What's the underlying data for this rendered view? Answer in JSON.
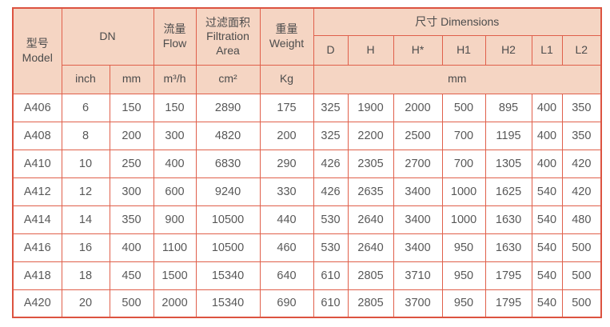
{
  "table": {
    "header": {
      "model": {
        "zh": "型号",
        "en": "Model"
      },
      "dn": "DN",
      "flow": {
        "zh": "流量",
        "en": "Flow"
      },
      "filtration": {
        "zh": "过滤面积",
        "en": "Filtration Area"
      },
      "weight": {
        "zh": "重量",
        "en": "Weight"
      },
      "dimensions": {
        "zh": "尺寸",
        "en": "Dimensions"
      },
      "dim_cols": [
        "D",
        "H",
        "H*",
        "H1",
        "H2",
        "L1",
        "L2"
      ],
      "units": {
        "inch": "inch",
        "dn_mm": "mm",
        "flow": "m³/h",
        "area": "cm²",
        "weight": "Kg",
        "dims": "mm"
      }
    },
    "rows": [
      {
        "model": "A406",
        "values": [
          "6",
          "150",
          "150",
          "2890",
          "175",
          "325",
          "1900",
          "2000",
          "500",
          "895",
          "400",
          "350"
        ]
      },
      {
        "model": "A408",
        "values": [
          "8",
          "200",
          "300",
          "4820",
          "200",
          "325",
          "2200",
          "2500",
          "700",
          "1195",
          "400",
          "350"
        ]
      },
      {
        "model": "A410",
        "values": [
          "10",
          "250",
          "400",
          "6830",
          "290",
          "426",
          "2305",
          "2700",
          "700",
          "1305",
          "400",
          "420"
        ]
      },
      {
        "model": "A412",
        "values": [
          "12",
          "300",
          "600",
          "9240",
          "330",
          "426",
          "2635",
          "3400",
          "1000",
          "1625",
          "540",
          "420"
        ]
      },
      {
        "model": "A414",
        "values": [
          "14",
          "350",
          "900",
          "10500",
          "440",
          "530",
          "2640",
          "3400",
          "1000",
          "1630",
          "540",
          "480"
        ]
      },
      {
        "model": "A416",
        "values": [
          "16",
          "400",
          "1100",
          "10500",
          "460",
          "530",
          "2640",
          "3400",
          "950",
          "1630",
          "540",
          "500"
        ]
      },
      {
        "model": "A418",
        "values": [
          "18",
          "450",
          "1500",
          "15340",
          "640",
          "610",
          "2805",
          "3710",
          "950",
          "1795",
          "540",
          "500"
        ]
      },
      {
        "model": "A420",
        "values": [
          "20",
          "500",
          "2000",
          "15340",
          "690",
          "610",
          "2805",
          "3700",
          "950",
          "1795",
          "540",
          "500"
        ]
      }
    ],
    "colors": {
      "header_bg": "#f5d5c3",
      "border": "#e0604b",
      "outer_border": "#dc5340",
      "text": "#4c4c4c"
    }
  }
}
